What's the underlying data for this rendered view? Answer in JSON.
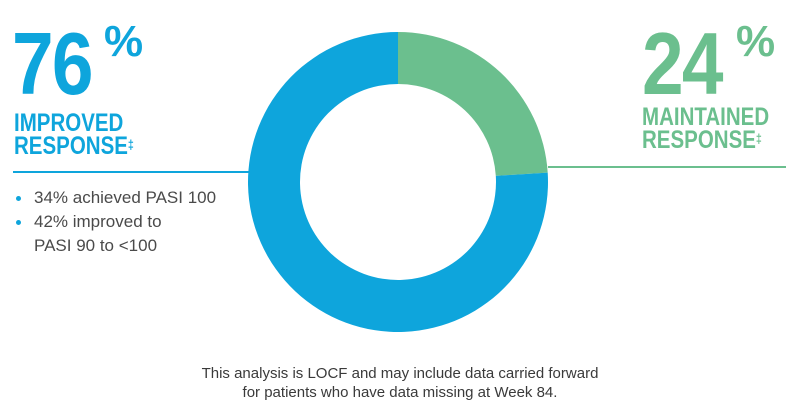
{
  "chart_data": {
    "type": "pie",
    "style": "donut",
    "slices": [
      {
        "label": "MAINTAINED RESPONSE",
        "value": 24,
        "color": "#6bbf8e"
      },
      {
        "label": "IMPROVED RESPONSE",
        "value": 76,
        "color": "#0ea5dc"
      }
    ]
  },
  "left": {
    "value": "76",
    "percent": "%",
    "label_line1": "IMPROVED",
    "label_line2": "RESPONSE",
    "mark": "‡",
    "bullets": [
      {
        "line1": "34% achieved PASI 100"
      },
      {
        "line1": "42% improved to",
        "line2": "PASI 90 to <100"
      }
    ]
  },
  "right": {
    "value": "24",
    "percent": "%",
    "label_line1": "MAINTAINED",
    "label_line2": "RESPONSE",
    "mark": "‡"
  },
  "footnote": {
    "line1": "This analysis is LOCF and may include data carried forward",
    "line2": "for patients who have data missing at Week 84."
  }
}
